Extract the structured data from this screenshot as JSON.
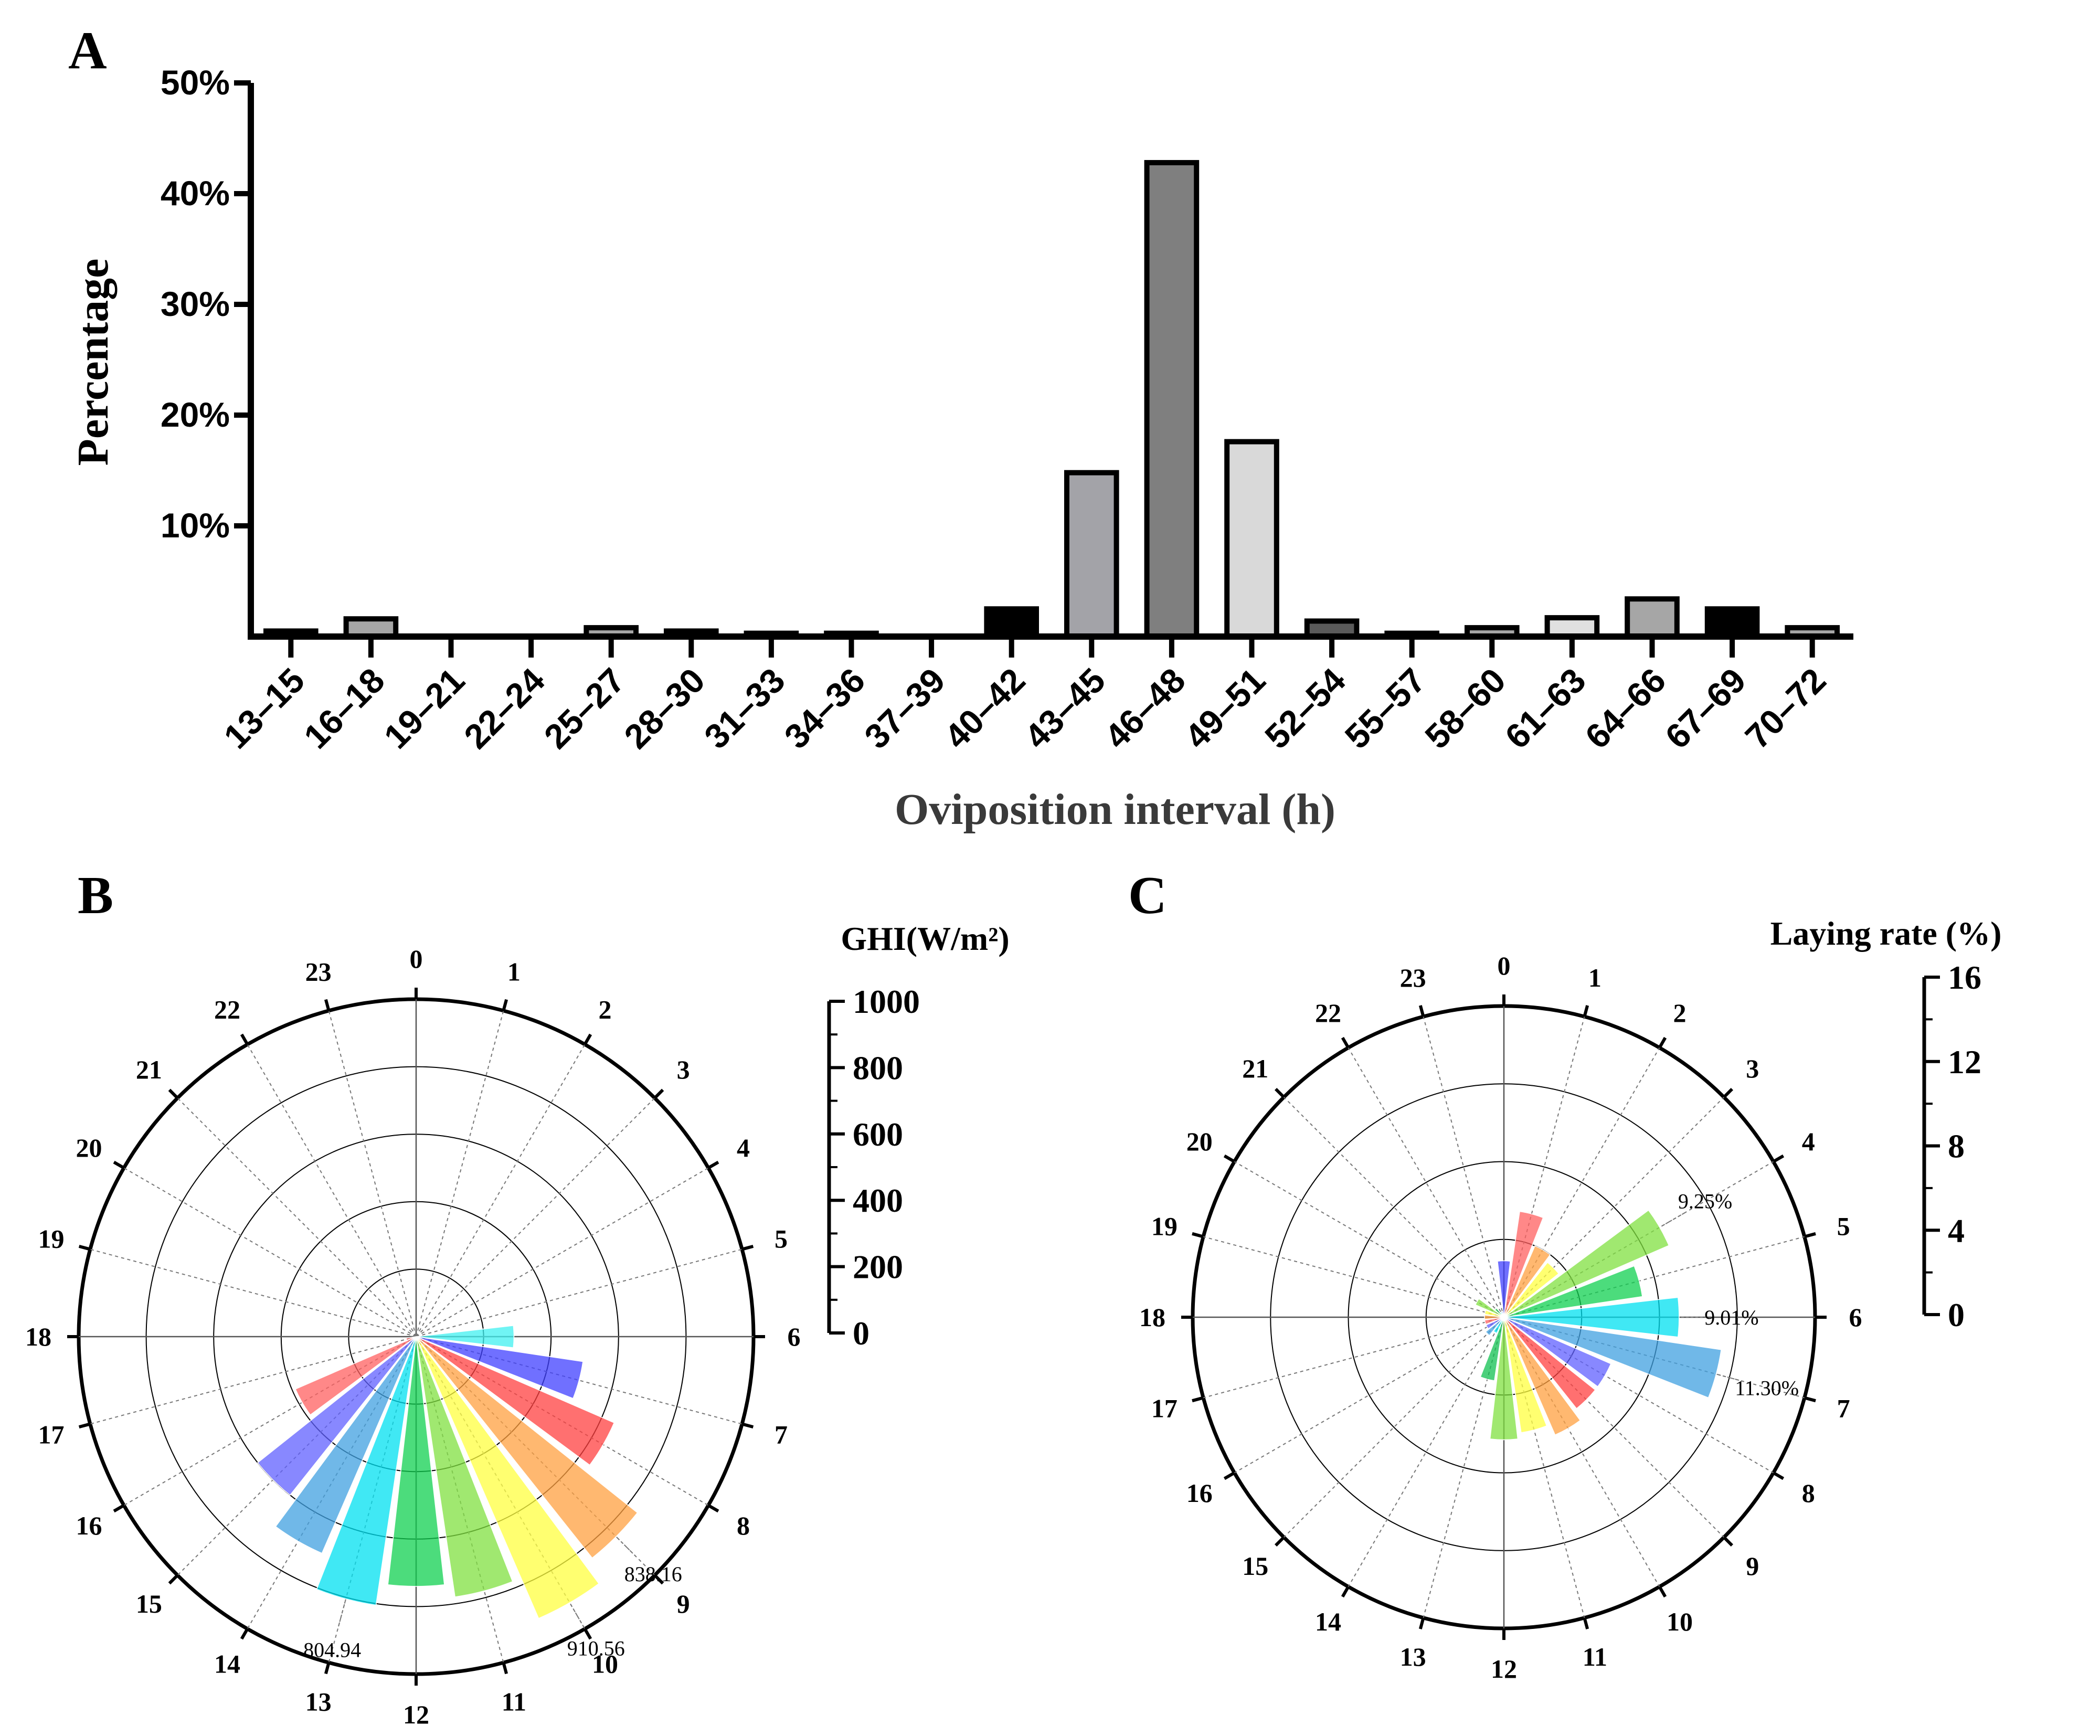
{
  "panels": {
    "A": "A",
    "B": "B",
    "C": "C"
  },
  "chart_data": [
    {
      "panel": "A",
      "type": "bar",
      "title": "",
      "xlabel": "Oviposition interval (h)",
      "ylabel": "Percentage",
      "ylim": [
        0,
        50
      ],
      "ytick_values": [
        10,
        20,
        30,
        40,
        50
      ],
      "yticks": [
        "10%",
        "20%",
        "30%",
        "40%",
        "50%"
      ],
      "categories": [
        "13–15",
        "16–18",
        "19–21",
        "22–24",
        "25–27",
        "28–30",
        "31–33",
        "34–36",
        "37–39",
        "40–42",
        "43–45",
        "46–48",
        "49–51",
        "52–54",
        "55–57",
        "58–60",
        "61–63",
        "64–66",
        "67–69",
        "70–72"
      ],
      "values": [
        0.5,
        1.6,
        0,
        0,
        0.8,
        0.5,
        0.3,
        0.3,
        0,
        2.5,
        14.8,
        42.8,
        17.6,
        1.4,
        0.3,
        0.8,
        1.7,
        3.4,
        2.5,
        0.8
      ],
      "fills": [
        "#7f7f7f",
        "#a6a6a6",
        "#7f7f7f",
        "#7f7f7f",
        "#a6a6a6",
        "#7f7f7f",
        "#7f7f7f",
        "#7f7f7f",
        "#7f7f7f",
        "#000000",
        "#a3a3a8",
        "#7f7f7f",
        "#d9d9d9",
        "#5a5a5a",
        "#7f7f7f",
        "#a6a6a6",
        "#e0e0e0",
        "#a6a6a6",
        "#000000",
        "#a6a6a6"
      ]
    },
    {
      "panel": "B",
      "type": "polar-bar",
      "scale_title": "GHI(W/m²)",
      "rlim": [
        0,
        1000
      ],
      "scale_ticks": [
        "1000",
        "800",
        "600",
        "400",
        "200",
        "0"
      ],
      "scale_values": [
        1000,
        800,
        600,
        400,
        200,
        0
      ],
      "ring_values": [
        200,
        400,
        600,
        800,
        1000
      ],
      "hours": [
        "0",
        "1",
        "2",
        "3",
        "4",
        "5",
        "6",
        "7",
        "8",
        "9",
        "10",
        "11",
        "12",
        "13",
        "14",
        "15",
        "16",
        "17",
        "18",
        "19",
        "20",
        "21",
        "22",
        "23"
      ],
      "values": [
        0,
        0,
        0,
        0,
        0,
        0,
        290,
        500,
        640,
        838.16,
        910.56,
        780,
        740,
        804.94,
        700,
        600,
        390,
        30,
        0,
        0,
        0,
        0,
        0,
        0
      ],
      "colors": [
        "#8080ff",
        "#80ff80",
        "#ff8080",
        "#ffff80",
        "#80ff80",
        "#40e090",
        "#40f0f0",
        "#4040ff",
        "#ff4040",
        "#ffa040",
        "#ffff40",
        "#80e040",
        "#10d050",
        "#00e0f0",
        "#40a0e0",
        "#6060ff",
        "#ff6060",
        "#ff6060",
        "#ff8080",
        "#ff8080",
        "#8080ff",
        "#8080ff",
        "#8080ff",
        "#8080ff"
      ],
      "annotations": [
        {
          "hour": 9,
          "text": "838.16"
        },
        {
          "hour": 10,
          "text": "910.56"
        },
        {
          "hour": 13,
          "text": "804.94"
        }
      ]
    },
    {
      "panel": "C",
      "type": "polar-bar",
      "scale_title": "Laying rate (%)",
      "rlim": [
        0,
        16
      ],
      "scale_ticks": [
        "16",
        "12",
        "8",
        "4",
        "0"
      ],
      "scale_values": [
        16,
        12,
        8,
        4,
        0
      ],
      "ring_values": [
        4,
        8,
        12,
        16
      ],
      "hours": [
        "0",
        "1",
        "2",
        "3",
        "4",
        "5",
        "6",
        "7",
        "8",
        "9",
        "10",
        "11",
        "12",
        "13",
        "14",
        "15",
        "16",
        "17",
        "18",
        "19",
        "20",
        "21",
        "22",
        "23"
      ],
      "values": [
        2.9,
        5.5,
        4.0,
        3.6,
        9.25,
        7.2,
        9.01,
        11.3,
        6.0,
        6.0,
        6.6,
        6.0,
        6.3,
        3.3,
        0.9,
        1.2,
        1.0,
        1.0,
        1.0,
        1.0,
        1.6,
        0.6,
        0.3,
        0.3
      ],
      "colors": [
        "#4040ff",
        "#ff6060",
        "#ffa040",
        "#ffff40",
        "#80e040",
        "#10d050",
        "#00e0f0",
        "#40a0e0",
        "#6060ff",
        "#ff4040",
        "#ffa040",
        "#ffff40",
        "#80e040",
        "#10c050",
        "#00e0f0",
        "#40a0e0",
        "#6060ff",
        "#ff6060",
        "#ffa040",
        "#ffff40",
        "#80e040",
        "#10c050",
        "#00e0f0",
        "#8080ff"
      ],
      "annotations": [
        {
          "hour": 4,
          "text": "9.25%"
        },
        {
          "hour": 6,
          "text": "9.01%"
        },
        {
          "hour": 7,
          "text": "11.30%"
        }
      ]
    }
  ]
}
